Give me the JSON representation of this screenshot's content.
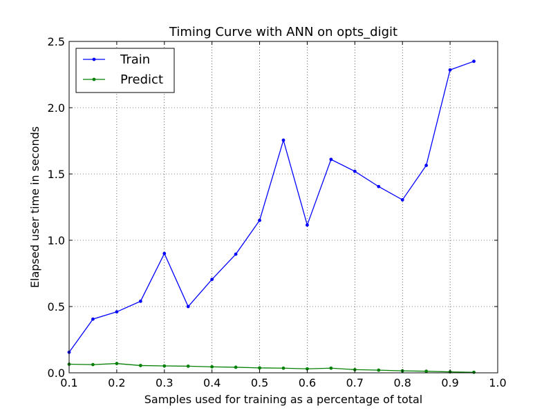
{
  "chart_data": {
    "type": "line",
    "title": "Timing Curve with ANN on opts_digit",
    "xlabel": "Samples used for training as a percentage of total",
    "ylabel": "Elapsed user time in seconds",
    "xlim": [
      0.1,
      1.0
    ],
    "ylim": [
      0.0,
      2.5
    ],
    "xticks": [
      "0.1",
      "0.2",
      "0.3",
      "0.4",
      "0.5",
      "0.6",
      "0.7",
      "0.8",
      "0.9",
      "1.0"
    ],
    "yticks": [
      "0.0",
      "0.5",
      "1.0",
      "1.5",
      "2.0",
      "2.5"
    ],
    "grid": true,
    "legend_position": "upper-left",
    "x": [
      0.1,
      0.15,
      0.2,
      0.25,
      0.3,
      0.35,
      0.4,
      0.45,
      0.5,
      0.55,
      0.6,
      0.65,
      0.7,
      0.75,
      0.8,
      0.85,
      0.9,
      0.95
    ],
    "series": [
      {
        "name": "Train",
        "color": "#0000ff",
        "values": [
          0.155,
          0.405,
          0.46,
          0.54,
          0.9,
          0.5,
          0.705,
          0.895,
          1.15,
          1.755,
          1.115,
          1.61,
          1.52,
          1.405,
          1.305,
          1.565,
          2.285,
          2.35
        ]
      },
      {
        "name": "Predict",
        "color": "#008000",
        "values": [
          0.065,
          0.062,
          0.07,
          0.055,
          0.052,
          0.05,
          0.045,
          0.042,
          0.037,
          0.035,
          0.03,
          0.035,
          0.024,
          0.02,
          0.015,
          0.012,
          0.007,
          0.004
        ]
      }
    ]
  }
}
